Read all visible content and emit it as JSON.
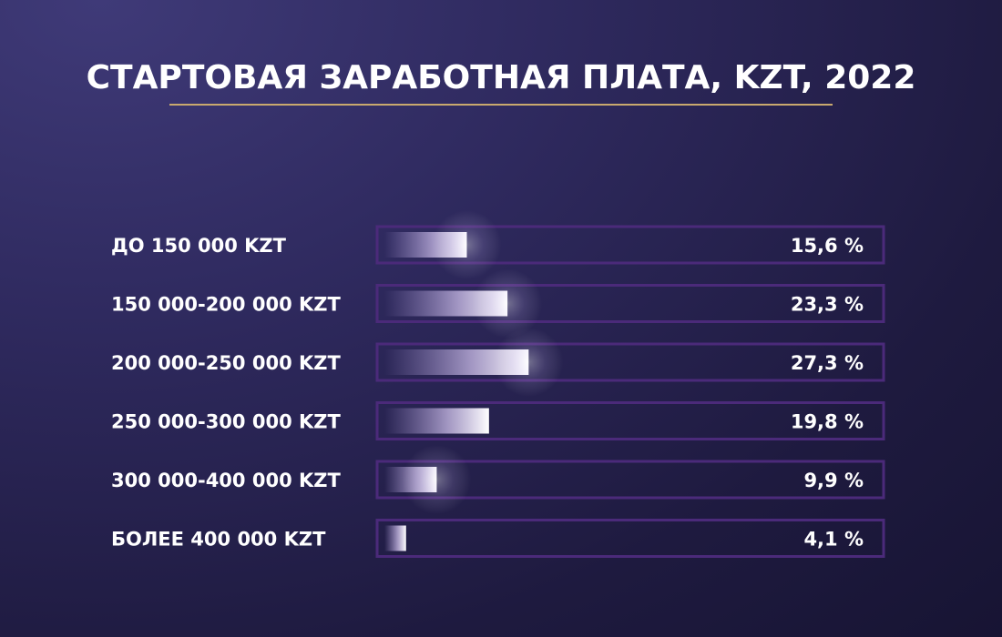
{
  "chart_data": {
    "type": "bar",
    "orientation": "horizontal",
    "title": "СТАРТОВАЯ ЗАРАБОТНАЯ ПЛАТА, KZT, 2022",
    "categories": [
      "ДО 150 000 KZT",
      "150 000-200 000 KZT",
      "200 000-250 000 KZT",
      "250 000-300 000 KZT",
      "300 000-400 000 KZT",
      "БОЛЕЕ 400 000 KZT"
    ],
    "values": [
      15.6,
      23.3,
      27.3,
      19.8,
      9.9,
      4.1
    ],
    "value_labels": [
      "15,6 %",
      "23,3 %",
      "27,3 %",
      "19,8 %",
      "9,9 %",
      "4,1 %"
    ],
    "glow": [
      true,
      true,
      true,
      false,
      true,
      false
    ],
    "xlim": [
      0,
      100
    ],
    "xlabel": "",
    "ylabel": "",
    "grid": false,
    "legend": "none"
  },
  "colors": {
    "background": "#2a2556",
    "title_underline": "#c9a96e",
    "track_border": "#4b2a7a",
    "bar_fill": "#ffffff",
    "text": "#ffffff"
  }
}
